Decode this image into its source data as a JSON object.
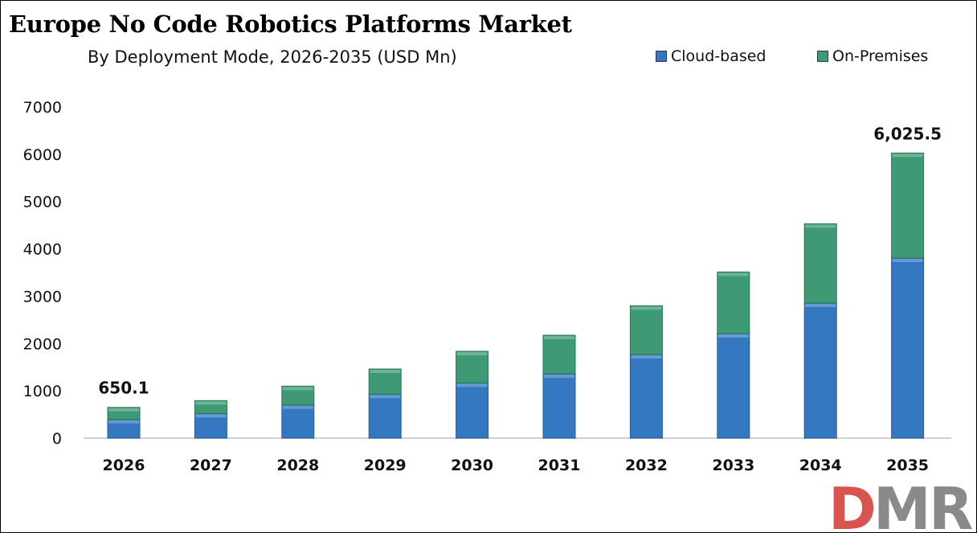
{
  "chart_data": {
    "type": "bar",
    "stacked": true,
    "title": "Europe No Code Robotics Platforms Market",
    "subtitle": "By Deployment Mode, 2026-2035 (USD Mn)",
    "categories": [
      "2026",
      "2027",
      "2028",
      "2029",
      "2030",
      "2031",
      "2032",
      "2033",
      "2034",
      "2035"
    ],
    "series": [
      {
        "name": "Cloud-based",
        "color": "#3578c2",
        "values": [
          396,
          521,
          702,
          929,
          1167,
          1359,
          1767,
          2209,
          2854,
          3806
        ]
      },
      {
        "name": "On-Premises",
        "color": "#3d9a74",
        "values": [
          254.1,
          272,
          397,
          532,
          668,
          816,
          1031,
          1303,
          1677,
          2219.5
        ]
      }
    ],
    "data_labels": [
      {
        "category": "2026",
        "text": "650.1"
      },
      {
        "category": "2035",
        "text": "6,025.5"
      }
    ],
    "ylim": [
      0,
      7000
    ],
    "yticks": [
      "0",
      "1000",
      "2000",
      "3000",
      "4000",
      "5000",
      "6000",
      "7000"
    ],
    "xlabel": "",
    "ylabel": "",
    "grid": false,
    "legend_position": "top-right"
  },
  "logo": {
    "text": "DMR"
  }
}
